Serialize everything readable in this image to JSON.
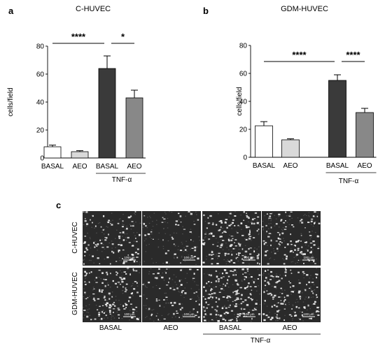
{
  "panel_labels": {
    "a": "a",
    "b": "b",
    "c": "c"
  },
  "chart_data": [
    {
      "type": "bar",
      "panel": "a",
      "title": "C-HUVEC",
      "ylabel": "cells/field",
      "ylim": [
        0,
        80
      ],
      "yticks": [
        0,
        20,
        40,
        60,
        80
      ],
      "categories": [
        "BASAL",
        "AEO",
        "BASAL",
        "AEO"
      ],
      "group_label": "TNF-α",
      "values": [
        8,
        4.5,
        64,
        43
      ],
      "errors": [
        1.2,
        0.7,
        9,
        5.5
      ],
      "colors": [
        "#ffffff",
        "#d9d9d9",
        "#3a3a3a",
        "#888888"
      ],
      "significance": [
        {
          "from": 0,
          "to": 2,
          "label": "****"
        },
        {
          "from": 2,
          "to": 3,
          "label": "*"
        }
      ]
    },
    {
      "type": "bar",
      "panel": "b",
      "title": "GDM-HUVEC",
      "ylabel": "cells/field",
      "ylim": [
        0,
        80
      ],
      "yticks": [
        0,
        20,
        40,
        60,
        80
      ],
      "categories": [
        "BASAL",
        "AEO",
        "BASAL",
        "AEO"
      ],
      "group_label": "TNF-α",
      "values": [
        22.5,
        12.5,
        55,
        32
      ],
      "errors": [
        3,
        0.7,
        4,
        3
      ],
      "colors": [
        "#ffffff",
        "#d9d9d9",
        "#3a3a3a",
        "#888888"
      ],
      "significance": [
        {
          "from": 0,
          "to": 2,
          "label": "****"
        },
        {
          "from": 2,
          "to": 3,
          "label": "****"
        }
      ]
    }
  ],
  "micrographs": {
    "rows": [
      "C-HUVEC",
      "GDM-HUVEC"
    ],
    "columns": [
      "BASAL",
      "AEO",
      "BASAL",
      "AEO"
    ],
    "group_label": "TNF-α",
    "scale_bar": "100 μm",
    "densities": [
      [
        0.22,
        0.1,
        0.32,
        0.26
      ],
      [
        0.3,
        0.14,
        0.38,
        0.28
      ]
    ]
  }
}
